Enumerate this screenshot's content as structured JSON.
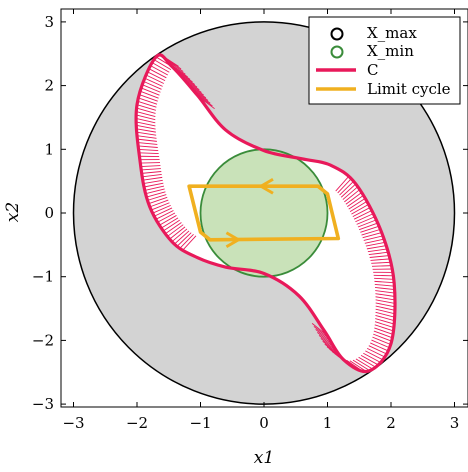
{
  "chart_data": {
    "type": "scatter",
    "xlabel": "x1",
    "ylabel": "x2",
    "xlim": [
      -3.2,
      3.2
    ],
    "ylim": [
      -3.2,
      3.2
    ],
    "xticks": [
      -3,
      -2,
      -1,
      0,
      1,
      2,
      3
    ],
    "yticks": [
      -3,
      -2,
      -1,
      0,
      1,
      2,
      3
    ],
    "tick_labels_x": [
      "−3",
      "−2",
      "−1",
      "0",
      "1",
      "2",
      "3"
    ],
    "tick_labels_y": [
      "−3",
      "−2",
      "−1",
      "0",
      "1",
      "2",
      "3"
    ],
    "grid": false,
    "legend_position": "top-right",
    "legend": [
      {
        "label": "X_max",
        "marker": "circle",
        "color": "#000000"
      },
      {
        "label": "X_min",
        "marker": "circle",
        "color": "#3a8c3a"
      },
      {
        "label": "C",
        "marker": "line",
        "color": "#e8195a"
      },
      {
        "label": "Limit cycle",
        "marker": "line",
        "color": "#f0b020"
      }
    ],
    "series": [
      {
        "name": "X_max",
        "shape": "disk",
        "center": [
          0,
          0
        ],
        "radius": 3.0,
        "fill": "#d3d3d3",
        "stroke": "#000000"
      },
      {
        "name": "X_min",
        "shape": "disk",
        "center": [
          0,
          0
        ],
        "radius": 1.0,
        "fill": "#c9e2b9",
        "stroke": "#3a8c3a"
      },
      {
        "name": "C",
        "shape": "closed-curve",
        "color": "#e8195a",
        "points": [
          [
            -1.7,
            2.45
          ],
          [
            -1.45,
            2.3
          ],
          [
            -1.05,
            1.85
          ],
          [
            -0.6,
            1.3
          ],
          [
            0.0,
            0.98
          ],
          [
            0.6,
            0.85
          ],
          [
            1.05,
            0.75
          ],
          [
            1.45,
            0.45
          ],
          [
            1.85,
            -0.3
          ],
          [
            2.05,
            -1.1
          ],
          [
            2.0,
            -2.05
          ],
          [
            1.65,
            -2.48
          ],
          [
            1.25,
            -2.3
          ],
          [
            0.95,
            -1.85
          ],
          [
            0.55,
            -1.3
          ],
          [
            0.0,
            -0.95
          ],
          [
            -0.6,
            -0.85
          ],
          [
            -1.05,
            -0.7
          ],
          [
            -1.45,
            -0.45
          ],
          [
            -1.8,
            0.1
          ],
          [
            -1.95,
            0.8
          ],
          [
            -2.0,
            1.7
          ]
        ]
      },
      {
        "name": "Limit cycle",
        "shape": "closed-curve",
        "color": "#f0b020",
        "points": [
          [
            -1.18,
            0.42
          ],
          [
            0.85,
            0.42
          ],
          [
            1.0,
            0.3
          ],
          [
            1.17,
            -0.4
          ],
          [
            -0.85,
            -0.42
          ],
          [
            -1.0,
            -0.3
          ]
        ]
      }
    ]
  }
}
